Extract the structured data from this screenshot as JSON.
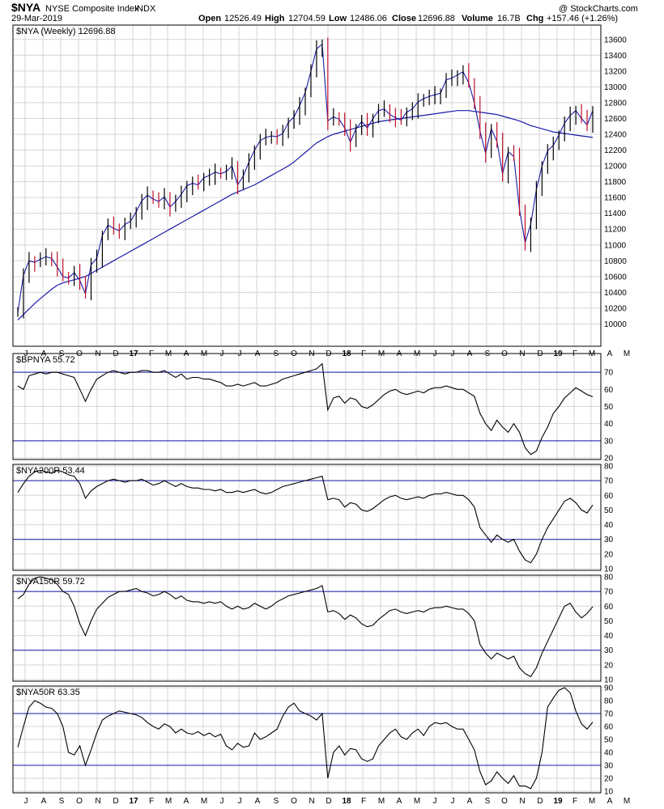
{
  "header": {
    "symbol": "$NYA",
    "name": "NYSE Composite Index",
    "exchange": "INDX",
    "date": "29-Mar-2019",
    "source": "@ StockCharts.com",
    "open_label": "Open",
    "open": "12526.49",
    "high_label": "High",
    "high": "12704.59",
    "low_label": "Low",
    "low": "12486.06",
    "close_label": "Close",
    "close": "12696.88",
    "volume_label": "Volume",
    "volume": "16.7B",
    "chg_label": "Chg",
    "chg": "+157.46 (+1.26%)"
  },
  "colors": {
    "up": "#000000",
    "down": "#c0102a",
    "ma": "#1a1aa8",
    "ref": "#1a1aa8",
    "indicator": "#000000"
  },
  "chart_data": [
    {
      "type": "candlestick",
      "label": "$NYA (Weekly) 12696.88",
      "ylim": [
        9800,
        13700
      ],
      "yticks": [
        10000,
        10200,
        10400,
        10600,
        10800,
        11000,
        11200,
        11400,
        11600,
        11800,
        12000,
        12200,
        12400,
        12600,
        12800,
        13000,
        13200,
        13400,
        13600
      ],
      "x_labels": [
        "J",
        "A",
        "S",
        "O",
        "N",
        "D",
        "17",
        "F",
        "M",
        "A",
        "M",
        "J",
        "J",
        "A",
        "S",
        "O",
        "N",
        "D",
        "18",
        "F",
        "M",
        "A",
        "M",
        "J",
        "J",
        "A",
        "S",
        "O",
        "N",
        "D",
        "19",
        "F",
        "M",
        "A",
        "M"
      ],
      "close": [
        10150,
        10620,
        10800,
        10780,
        10820,
        10850,
        10830,
        10720,
        10600,
        10580,
        10650,
        10550,
        10380,
        10750,
        10830,
        11120,
        11250,
        11210,
        11180,
        11260,
        11300,
        11420,
        11560,
        11630,
        11580,
        11550,
        11610,
        11480,
        11550,
        11640,
        11750,
        11780,
        11760,
        11850,
        11880,
        11920,
        11900,
        11930,
        12000,
        11760,
        11870,
        12050,
        12200,
        12320,
        12360,
        12380,
        12370,
        12410,
        12550,
        12620,
        12760,
        12930,
        13200,
        13480,
        13540,
        12570,
        12620,
        12590,
        12480,
        12300,
        12470,
        12560,
        12480,
        12600,
        12700,
        12720,
        12650,
        12610,
        12580,
        12680,
        12720,
        12810,
        12850,
        12880,
        12900,
        12920,
        13090,
        13110,
        13150,
        13190,
        13050,
        12800,
        12440,
        12160,
        12470,
        12310,
        11900,
        12180,
        12120,
        11450,
        11030,
        11260,
        11700,
        12000,
        12190,
        12260,
        12390,
        12540,
        12640,
        12700,
        12600,
        12520,
        12697
      ],
      "ma": [
        10050,
        10120,
        10190,
        10260,
        10320,
        10380,
        10440,
        10490,
        10520,
        10540,
        10560,
        10580,
        10600,
        10640,
        10680,
        10720,
        10760,
        10800,
        10840,
        10880,
        10920,
        10960,
        11000,
        11040,
        11080,
        11120,
        11160,
        11200,
        11240,
        11280,
        11320,
        11360,
        11400,
        11440,
        11480,
        11520,
        11560,
        11600,
        11640,
        11670,
        11700,
        11730,
        11760,
        11800,
        11840,
        11880,
        11920,
        11960,
        12000,
        12050,
        12110,
        12170,
        12230,
        12290,
        12330,
        12370,
        12400,
        12420,
        12440,
        12460,
        12480,
        12500,
        12520,
        12540,
        12560,
        12570,
        12580,
        12590,
        12600,
        12610,
        12620,
        12630,
        12640,
        12650,
        12660,
        12670,
        12680,
        12690,
        12700,
        12700,
        12700,
        12690,
        12680,
        12670,
        12660,
        12650,
        12630,
        12610,
        12590,
        12570,
        12540,
        12510,
        12490,
        12470,
        12450,
        12430,
        12420,
        12410,
        12400,
        12390,
        12380,
        12370,
        12360
      ]
    },
    {
      "type": "line",
      "label": "$BPNYA 55.72",
      "ylim": [
        20,
        80
      ],
      "yticks": [
        20,
        30,
        40,
        50,
        60,
        70
      ],
      "ref_lines": [
        70,
        30
      ],
      "values": [
        62,
        60,
        68,
        69,
        70,
        69,
        70,
        70,
        69,
        68,
        67,
        60,
        53,
        60,
        66,
        68,
        70,
        71,
        70,
        69,
        70,
        70,
        71,
        71,
        70,
        70,
        71,
        69,
        67,
        69,
        66,
        67,
        67,
        66,
        66,
        65,
        64,
        62,
        62,
        63,
        62,
        63,
        64,
        62,
        62,
        63,
        64,
        66,
        67,
        68,
        69,
        70,
        71,
        72,
        75,
        48,
        55,
        56,
        52,
        55,
        54,
        50,
        49,
        51,
        54,
        57,
        59,
        60,
        58,
        57,
        58,
        59,
        58,
        60,
        61,
        61,
        62,
        61,
        60,
        60,
        58,
        56,
        46,
        40,
        36,
        42,
        38,
        35,
        40,
        35,
        26,
        22,
        24,
        32,
        38,
        46,
        50,
        55,
        58,
        61,
        59,
        57,
        55.72
      ]
    },
    {
      "type": "line",
      "label": "$NYA200R 53.44",
      "ylim": [
        10,
        80
      ],
      "yticks": [
        10,
        20,
        30,
        40,
        50,
        60,
        70,
        80
      ],
      "ref_lines": [
        70,
        30
      ],
      "values": [
        62,
        68,
        73,
        76,
        77,
        76,
        75,
        77,
        76,
        74,
        73,
        68,
        58,
        63,
        66,
        68,
        70,
        71,
        70,
        69,
        70,
        70,
        71,
        69,
        67,
        68,
        70,
        68,
        66,
        68,
        66,
        65,
        65,
        64,
        64,
        63,
        64,
        62,
        62,
        63,
        62,
        63,
        64,
        62,
        61,
        62,
        64,
        66,
        67,
        68,
        69,
        70,
        71,
        72,
        73,
        57,
        58,
        57,
        52,
        55,
        54,
        50,
        49,
        51,
        54,
        57,
        59,
        60,
        58,
        57,
        58,
        59,
        58,
        60,
        61,
        61,
        62,
        61,
        60,
        60,
        57,
        52,
        38,
        33,
        28,
        33,
        30,
        28,
        30,
        22,
        16,
        14,
        20,
        30,
        38,
        44,
        50,
        56,
        58,
        55,
        50,
        48,
        53.44
      ]
    },
    {
      "type": "line",
      "label": "$NYA150R 59.72",
      "ylim": [
        10,
        80
      ],
      "yticks": [
        10,
        20,
        30,
        40,
        50,
        60,
        70,
        80
      ],
      "ref_lines": [
        70,
        30
      ],
      "values": [
        65,
        68,
        75,
        79,
        80,
        79,
        78,
        75,
        70,
        68,
        60,
        48,
        40,
        50,
        58,
        62,
        66,
        68,
        70,
        70,
        71,
        72,
        70,
        69,
        67,
        68,
        70,
        68,
        65,
        67,
        64,
        63,
        63,
        62,
        63,
        62,
        63,
        60,
        58,
        60,
        58,
        59,
        62,
        60,
        58,
        60,
        63,
        65,
        67,
        68,
        69,
        70,
        71,
        72,
        74,
        56,
        57,
        55,
        51,
        54,
        52,
        48,
        46,
        47,
        51,
        54,
        57,
        58,
        56,
        55,
        56,
        57,
        56,
        58,
        59,
        59,
        60,
        59,
        58,
        58,
        55,
        50,
        34,
        28,
        24,
        28,
        26,
        24,
        26,
        18,
        14,
        12,
        18,
        28,
        36,
        44,
        52,
        60,
        62,
        56,
        52,
        55,
        59.72
      ]
    },
    {
      "type": "line",
      "label": "$NYA50R 63.35",
      "ylim": [
        10,
        90
      ],
      "yticks": [
        10,
        20,
        30,
        40,
        50,
        60,
        70,
        80,
        90
      ],
      "ref_lines": [
        70,
        30
      ],
      "values": [
        44,
        60,
        75,
        80,
        78,
        75,
        74,
        70,
        60,
        40,
        38,
        45,
        30,
        42,
        55,
        65,
        68,
        70,
        72,
        71,
        70,
        69,
        67,
        63,
        60,
        58,
        62,
        60,
        55,
        58,
        55,
        54,
        56,
        53,
        55,
        52,
        54,
        45,
        42,
        47,
        44,
        45,
        55,
        50,
        52,
        55,
        58,
        68,
        75,
        78,
        72,
        70,
        68,
        65,
        70,
        20,
        40,
        45,
        38,
        43,
        42,
        35,
        33,
        35,
        45,
        50,
        55,
        58,
        52,
        50,
        55,
        58,
        53,
        60,
        63,
        62,
        63,
        60,
        58,
        58,
        50,
        42,
        25,
        15,
        18,
        25,
        20,
        16,
        22,
        14,
        14,
        12,
        20,
        40,
        75,
        82,
        88,
        90,
        86,
        72,
        62,
        58,
        63.35
      ]
    }
  ]
}
